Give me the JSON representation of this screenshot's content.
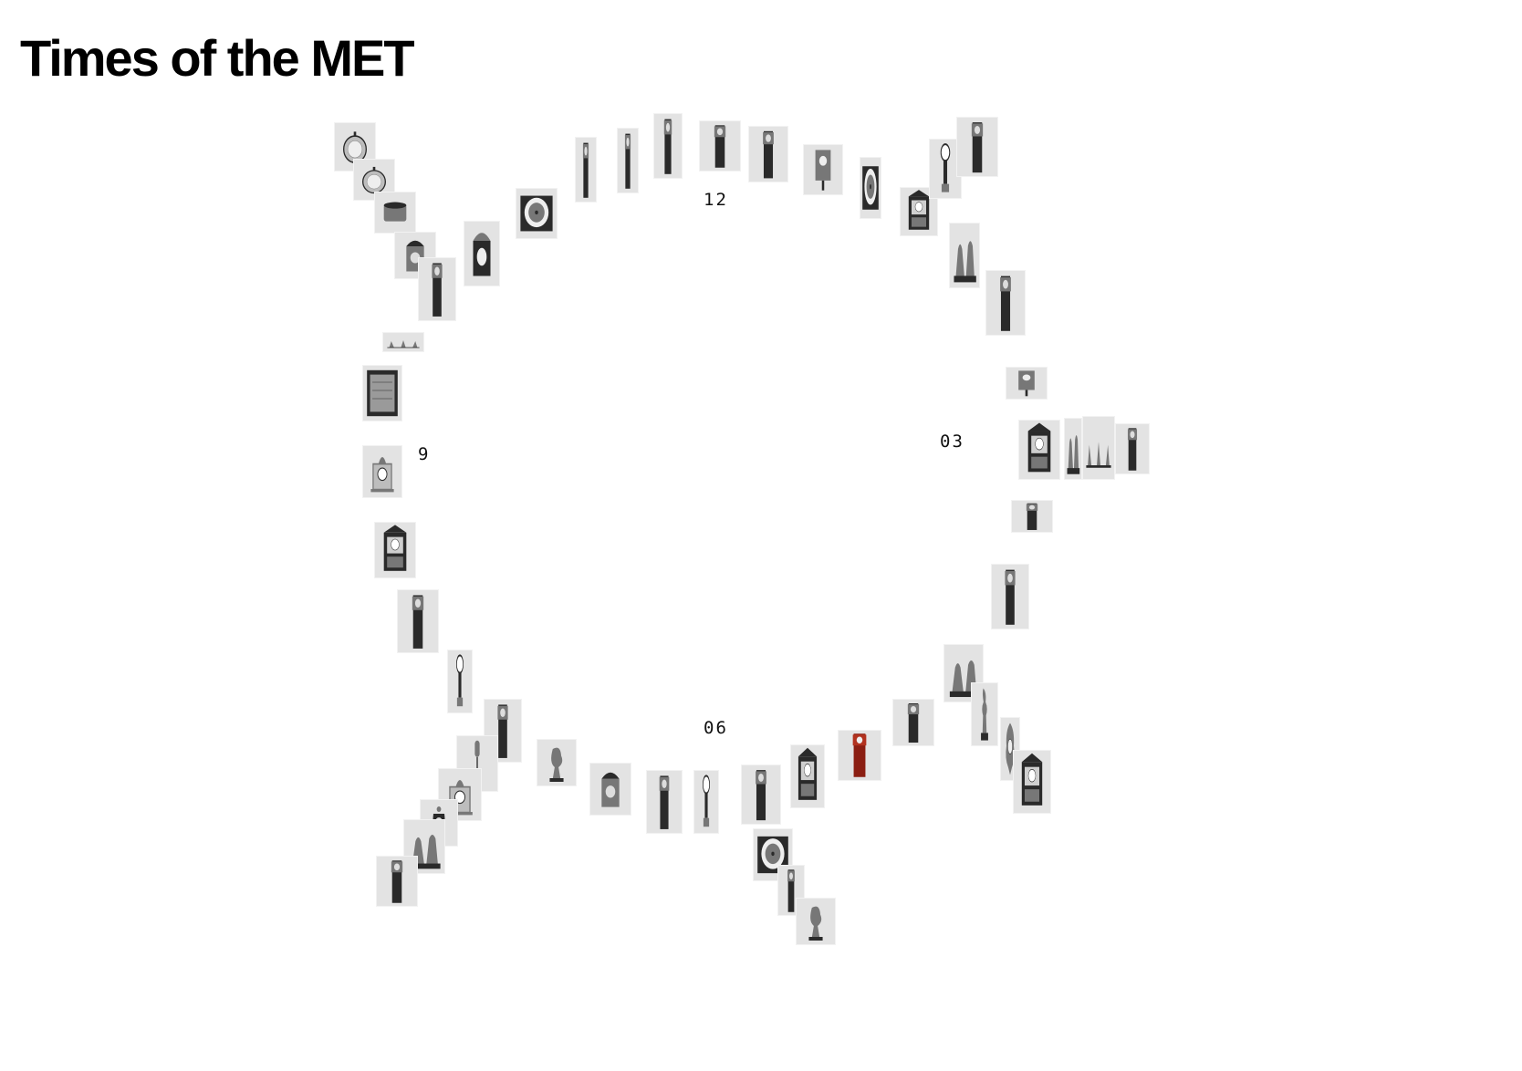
{
  "page": {
    "title": "Times of the MET"
  },
  "clock_labels": {
    "twelve": "12",
    "three": "03",
    "six": "06",
    "nine": "9"
  },
  "thumbnails": [
    {
      "kind": "pocket"
    },
    {
      "kind": "pocket"
    },
    {
      "kind": "drum"
    },
    {
      "kind": "lantern"
    },
    {
      "kind": "tall"
    },
    {
      "kind": "garniture"
    },
    {
      "kind": "framed"
    },
    {
      "kind": "mantel"
    },
    {
      "kind": "shelf"
    },
    {
      "kind": "tall"
    },
    {
      "kind": "banjo"
    },
    {
      "kind": "tall"
    },
    {
      "kind": "dial"
    },
    {
      "kind": "cupid"
    },
    {
      "kind": "tall"
    },
    {
      "kind": "tall"
    },
    {
      "kind": "tall"
    },
    {
      "kind": "tall"
    },
    {
      "kind": "tall"
    },
    {
      "kind": "wall"
    },
    {
      "kind": "dial"
    },
    {
      "kind": "shelf"
    },
    {
      "kind": "banjo"
    },
    {
      "kind": "tall"
    },
    {
      "kind": "figure"
    },
    {
      "kind": "tall"
    },
    {
      "kind": "wall"
    },
    {
      "kind": "shelf"
    },
    {
      "kind": "figure"
    },
    {
      "kind": "garniture"
    },
    {
      "kind": "tall"
    },
    {
      "kind": "tall"
    },
    {
      "kind": "tall"
    },
    {
      "kind": "figure"
    },
    {
      "kind": "sculpture"
    },
    {
      "kind": "rococo"
    },
    {
      "kind": "shelf"
    },
    {
      "kind": "tall"
    },
    {
      "kind": "tall-red"
    },
    {
      "kind": "shelf"
    },
    {
      "kind": "tall"
    },
    {
      "kind": "banjo"
    },
    {
      "kind": "tall"
    },
    {
      "kind": "lantern"
    },
    {
      "kind": "dial"
    },
    {
      "kind": "tall"
    },
    {
      "kind": "cupid"
    },
    {
      "kind": "pendant"
    },
    {
      "kind": "mantel"
    },
    {
      "kind": "urn"
    },
    {
      "kind": "figure"
    },
    {
      "kind": "tall"
    },
    {
      "kind": "dial"
    },
    {
      "kind": "bracket"
    },
    {
      "kind": "tall"
    },
    {
      "kind": "shelf"
    },
    {
      "kind": "mantel"
    },
    {
      "kind": "rococo"
    },
    {
      "kind": "banjo"
    }
  ]
}
